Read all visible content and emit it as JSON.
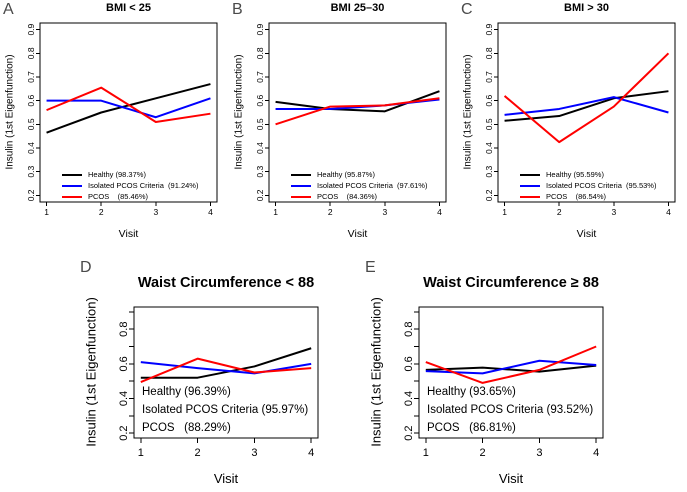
{
  "figure": {
    "panel_letter_color": "#4a4a4a",
    "axis_color": "#000000",
    "series_colors": {
      "healthy": "#000000",
      "isolated_pcos": "#0000FF",
      "pcos": "#FF0000"
    }
  },
  "chart_data": [
    {
      "type": "line",
      "panel_label": "A",
      "title": "BMI < 25",
      "xlabel": "Visit",
      "ylabel": "Insulin (1st Eigenfunction)",
      "x": [
        1,
        2,
        3,
        4
      ],
      "xticks": [
        1,
        2,
        3,
        4
      ],
      "xlim": [
        0.88,
        4.12
      ],
      "ylim": [
        0.172,
        0.928
      ],
      "yticks": [
        0.2,
        0.3,
        0.4,
        0.5,
        0.6,
        0.7,
        0.8,
        0.9
      ],
      "ytick_labels": [
        "0.2",
        "0.3",
        "0.4",
        "0.5",
        "0.6",
        "0.7",
        "0.8",
        "0.9"
      ],
      "grid": false,
      "series": [
        {
          "name": "Healthy",
          "pve": "98.37%",
          "color": "#000000",
          "values": [
            0.465,
            0.55,
            0.61,
            0.67
          ]
        },
        {
          "name": "Isolated PCOS Criteria",
          "pve": "91.24%",
          "color": "#0000FF",
          "values": [
            0.6,
            0.6,
            0.53,
            0.61
          ]
        },
        {
          "name": "PCOS",
          "pve": "85.46%",
          "color": "#FF0000",
          "values": [
            0.56,
            0.655,
            0.51,
            0.545
          ]
        }
      ],
      "legend": {
        "position": "inside-bottom-left",
        "swatches": true,
        "entries": [
          "Healthy (98.37%)",
          "Isolated PCOS Criteria  (91.24%)",
          "PCOS    (85.46%)"
        ]
      }
    },
    {
      "type": "line",
      "panel_label": "B",
      "title": "BMI 25–30",
      "xlabel": "Visit",
      "ylabel": "Insulin (1st Eigenfunction)",
      "x": [
        1,
        2,
        3,
        4
      ],
      "xticks": [
        1,
        2,
        3,
        4
      ],
      "xlim": [
        0.88,
        4.12
      ],
      "ylim": [
        0.172,
        0.928
      ],
      "yticks": [
        0.2,
        0.3,
        0.4,
        0.5,
        0.6,
        0.7,
        0.8,
        0.9
      ],
      "ytick_labels": [
        "0.2",
        "0.3",
        "0.4",
        "0.5",
        "0.6",
        "0.7",
        "0.8",
        "0.9"
      ],
      "grid": false,
      "series": [
        {
          "name": "Healthy",
          "pve": "95.87%",
          "color": "#000000",
          "values": [
            0.595,
            0.565,
            0.555,
            0.64
          ]
        },
        {
          "name": "Isolated PCOS Criteria",
          "pve": "97.61%",
          "color": "#0000FF",
          "values": [
            0.565,
            0.565,
            0.58,
            0.605
          ]
        },
        {
          "name": "PCOS",
          "pve": "84.36%",
          "color": "#FF0000",
          "values": [
            0.5,
            0.575,
            0.58,
            0.61
          ]
        }
      ],
      "legend": {
        "position": "inside-bottom-left",
        "swatches": true,
        "entries": [
          "Healthy (95.87%)",
          "Isolated PCOS Criteria  (97.61%)",
          "PCOS    (84.36%)"
        ]
      }
    },
    {
      "type": "line",
      "panel_label": "C",
      "title": "BMI > 30",
      "xlabel": "Visit",
      "ylabel": "Insulin (1st Eigenfunction)",
      "x": [
        1,
        2,
        3,
        4
      ],
      "xticks": [
        1,
        2,
        3,
        4
      ],
      "xlim": [
        0.88,
        4.12
      ],
      "ylim": [
        0.172,
        0.928
      ],
      "yticks": [
        0.2,
        0.3,
        0.4,
        0.5,
        0.6,
        0.7,
        0.8,
        0.9
      ],
      "ytick_labels": [
        "0.2",
        "0.3",
        "0.4",
        "0.5",
        "0.6",
        "0.7",
        "0.8",
        "0.9"
      ],
      "grid": false,
      "series": [
        {
          "name": "Healthy",
          "pve": "95.59%",
          "color": "#000000",
          "values": [
            0.515,
            0.535,
            0.61,
            0.64
          ]
        },
        {
          "name": "Isolated PCOS Criteria",
          "pve": "95.53%",
          "color": "#0000FF",
          "values": [
            0.54,
            0.565,
            0.615,
            0.55
          ]
        },
        {
          "name": "PCOS",
          "pve": "86.54%",
          "color": "#FF0000",
          "values": [
            0.62,
            0.425,
            0.575,
            0.8
          ]
        }
      ],
      "legend": {
        "position": "inside-bottom-left",
        "swatches": true,
        "entries": [
          "Healthy (95.59%)",
          "Isolated PCOS Criteria  (95.53%)",
          "PCOS    (86.54%)"
        ]
      }
    },
    {
      "type": "line",
      "panel_label": "D",
      "title": "Waist Circumference < 88",
      "xlabel": "Visit",
      "ylabel": "Insulin (1st Eigenfunction)",
      "x": [
        1,
        2,
        3,
        4
      ],
      "xticks": [
        1,
        2,
        3,
        4
      ],
      "xlim": [
        0.88,
        4.12
      ],
      "ylim": [
        0.172,
        0.928
      ],
      "yticks": [
        0.2,
        0.3,
        0.4,
        0.5,
        0.6,
        0.7,
        0.8,
        0.9
      ],
      "ytick_labels": [
        "0.2",
        "",
        "0.4",
        "",
        "0.6",
        "",
        "0.8",
        ""
      ],
      "grid": false,
      "series": [
        {
          "name": "Healthy",
          "pve": "96.39%",
          "color": "#000000",
          "values": [
            0.52,
            0.52,
            0.585,
            0.69
          ]
        },
        {
          "name": "Isolated PCOS Criteria",
          "pve": "95.97%",
          "color": "#0000FF",
          "values": [
            0.61,
            0.575,
            0.545,
            0.6
          ]
        },
        {
          "name": "PCOS",
          "pve": "88.29%",
          "color": "#FF0000",
          "values": [
            0.495,
            0.63,
            0.55,
            0.575
          ]
        }
      ],
      "legend": {
        "position": "inside-bottom-left",
        "swatches": false,
        "entries": [
          "Healthy (96.39%)",
          "Isolated PCOS Criteria (95.97%)",
          "PCOS   (88.29%)"
        ]
      }
    },
    {
      "type": "line",
      "panel_label": "E",
      "title": "Waist Circumference ≥ 88",
      "xlabel": "Visit",
      "ylabel": "Insulin (1st Eigenfunction)",
      "x": [
        1,
        2,
        3,
        4
      ],
      "xticks": [
        1,
        2,
        3,
        4
      ],
      "xlim": [
        0.88,
        4.12
      ],
      "ylim": [
        0.172,
        0.928
      ],
      "yticks": [
        0.2,
        0.3,
        0.4,
        0.5,
        0.6,
        0.7,
        0.8,
        0.9
      ],
      "ytick_labels": [
        "0.2",
        "",
        "0.4",
        "",
        "0.6",
        "",
        "0.8",
        ""
      ],
      "grid": false,
      "series": [
        {
          "name": "Healthy",
          "pve": "93.65%",
          "color": "#000000",
          "values": [
            0.565,
            0.578,
            0.555,
            0.59
          ]
        },
        {
          "name": "Isolated PCOS Criteria",
          "pve": "93.52%",
          "color": "#0000FF",
          "values": [
            0.558,
            0.545,
            0.618,
            0.593
          ]
        },
        {
          "name": "PCOS",
          "pve": "86.81%",
          "color": "#FF0000",
          "values": [
            0.61,
            0.49,
            0.565,
            0.7
          ]
        }
      ],
      "legend": {
        "position": "inside-bottom-left",
        "swatches": false,
        "entries": [
          "Healthy (93.65%)",
          "Isolated PCOS Criteria (93.52%)",
          "PCOS   (86.81%)"
        ]
      }
    }
  ]
}
